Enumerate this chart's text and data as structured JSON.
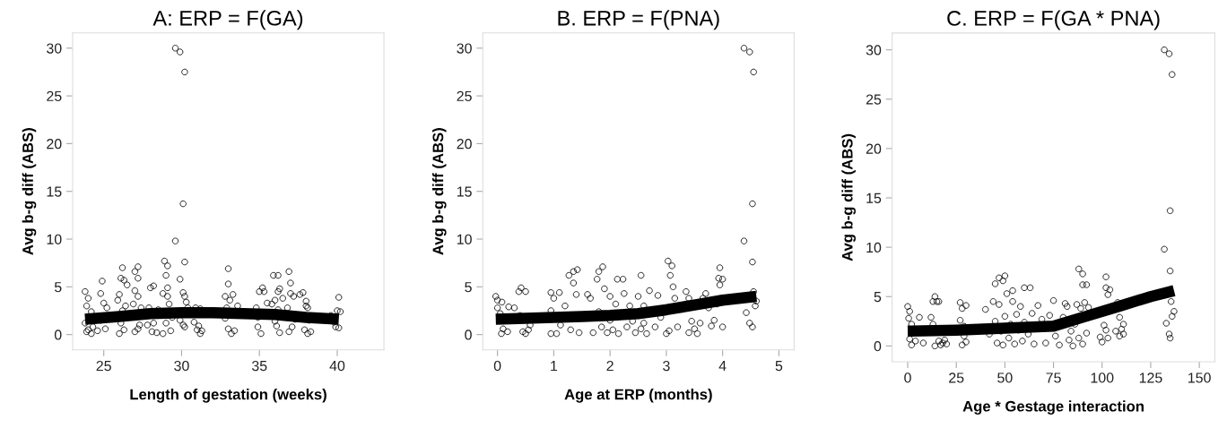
{
  "chart_data": [
    {
      "type": "scatter",
      "title": "A: ERP = F(GA)",
      "xlabel": "Length of gestation (weeks)",
      "ylabel": "Avg b-g diff (ABS)",
      "xlim": [
        23.0,
        43.0
      ],
      "ylim": [
        -1.6,
        31.6
      ],
      "xticks": [
        25,
        30,
        35,
        40
      ],
      "yticks": [
        0,
        5,
        10,
        15,
        20,
        25,
        30
      ],
      "grid": false,
      "series": [
        {
          "color": "#000000",
          "marker": "circle",
          "x": [
            29.6,
            29.9,
            30.2,
            30.1,
            29.6,
            30.2,
            28.9,
            29.1,
            29.0,
            29.9,
            24.9,
            26.2,
            27.2,
            27.0,
            26.1,
            27.2,
            26.3,
            33.0,
            33.0,
            36.9,
            35.9,
            36.2,
            37.0,
            40.1,
            23.8,
            24.0,
            23.9,
            24.2,
            23.8,
            24.0,
            24.2,
            23.9,
            24.3,
            24.8,
            25.0,
            25.2,
            24.8,
            25.1,
            24.6,
            26.0,
            25.9,
            26.2,
            26.1,
            26.3,
            26.0,
            26.5,
            26.4,
            27.0,
            27.2,
            26.9,
            27.3,
            27.0,
            27.2,
            27.4,
            28.0,
            28.2,
            27.9,
            28.2,
            28.1,
            28.4,
            27.8,
            28.5,
            28.8,
            29.1,
            29.2,
            29.0,
            29.3,
            28.8,
            29.4,
            29.1,
            30.1,
            30.3,
            29.9,
            30.1,
            30.2,
            30.4,
            30.2,
            30.8,
            31.0,
            31.2,
            31.1,
            30.9,
            31.3,
            31.2,
            32.8,
            33.1,
            33.3,
            32.9,
            32.8,
            33.0,
            33.2,
            33.4,
            33.6,
            34.8,
            35.0,
            35.2,
            35.3,
            34.9,
            35.1,
            34.9,
            35.5,
            35.8,
            36.0,
            36.2,
            36.3,
            36.0,
            36.1,
            36.3,
            36.5,
            36.2,
            36.8,
            37.0,
            37.2,
            36.9,
            37.1,
            37.3,
            37.6,
            37.8,
            38.0,
            38.1,
            38.2,
            37.9,
            38.1,
            38.3,
            38.0,
            39.6,
            39.8,
            40.0,
            40.1,
            40.2,
            39.9
          ],
          "values": [
            30,
            29.6,
            27.5,
            13.7,
            9.8,
            7.6,
            7.7,
            7.2,
            6.2,
            5.8,
            5.6,
            7.0,
            7.1,
            6.6,
            5.9,
            5.9,
            5.7,
            6.9,
            5.3,
            6.6,
            6.2,
            6.2,
            5.4,
            3.9,
            4.5,
            3.8,
            3.0,
            2.4,
            1.2,
            0.5,
            0.1,
            0.3,
            0.8,
            4.3,
            3.3,
            2.8,
            1.5,
            0.6,
            0.4,
            4.2,
            3.6,
            2.5,
            1.2,
            0.5,
            0.1,
            5.2,
            3.0,
            4.6,
            4.0,
            3.2,
            1.0,
            0.3,
            0.6,
            2.8,
            4.9,
            5.1,
            2.8,
            1.2,
            0.3,
            0.2,
            1.0,
            2.6,
            4.3,
            4.0,
            3.2,
            1.2,
            0.4,
            0.1,
            1.8,
            4.9,
            4.4,
            3.4,
            1.5,
            1.0,
            0.8,
            2.8,
            4.0,
            1.3,
            0.5,
            0.1,
            0.9,
            2.8,
            0.4,
            2.7,
            4.0,
            3.6,
            4.2,
            2.8,
            1.7,
            0.6,
            0.1,
            0.4,
            3.0,
            2.8,
            4.5,
            4.9,
            4.5,
            0.8,
            0.1,
            1.8,
            3.3,
            3.2,
            3.6,
            4.5,
            4.8,
            1.4,
            0.9,
            0.2,
            3.8,
            2.6,
            2.8,
            4.3,
            4.0,
            0.3,
            0.8,
            1.6,
            4.2,
            4.4,
            3.5,
            2.8,
            1.5,
            0.5,
            0.1,
            0.3,
            3.0,
            2.0,
            1.3,
            2.5,
            0.7,
            2.4,
            0.8
          ]
        },
        {
          "type": "line",
          "marker": "none",
          "color": "#000000",
          "x": [
            23.8,
            26,
            28,
            30,
            32,
            34,
            36,
            38,
            40.1
          ],
          "values": [
            1.6,
            1.9,
            2.2,
            2.3,
            2.3,
            2.2,
            2.1,
            1.8,
            1.6
          ]
        }
      ]
    },
    {
      "type": "scatter",
      "title": "B. ERP = F(PNA)",
      "xlabel": "Age at ERP (months)",
      "ylabel": "Avg b-g diff (ABS)",
      "xlim": [
        -0.26,
        5.27
      ],
      "ylim": [
        -1.6,
        31.6
      ],
      "xticks": [
        0,
        1,
        2,
        3,
        4,
        5
      ],
      "yticks": [
        0,
        5,
        10,
        15,
        20,
        25,
        30
      ],
      "grid": false,
      "series": [
        {
          "color": "#000000",
          "marker": "circle",
          "x": [
            4.38,
            4.48,
            4.55,
            4.53,
            4.38,
            4.53,
            3.03,
            3.1,
            3.07,
            3.12,
            3.95,
            3.93,
            4.0,
            3.95,
            4.55,
            4.6,
            4.58,
            4.42,
            4.48,
            4.53,
            1.42,
            1.35,
            1.27,
            1.87,
            1.8,
            2.55,
            2.13,
            2.23,
            1.77,
            -0.03,
            0.0,
            0.08,
            0.0,
            0.05,
            0.1,
            0.07,
            0.18,
            0.2,
            0.3,
            0.38,
            0.42,
            0.5,
            0.4,
            0.45,
            0.5,
            0.55,
            0.58,
            0.95,
            1.0,
            1.1,
            0.95,
            0.95,
            1.05,
            1.12,
            1.2,
            1.3,
            1.35,
            1.4,
            1.45,
            1.6,
            1.65,
            1.7,
            1.8,
            1.85,
            1.9,
            1.95,
            2.0,
            2.0,
            2.05,
            2.1,
            2.15,
            2.25,
            2.3,
            2.35,
            2.4,
            2.45,
            2.5,
            2.55,
            2.6,
            2.6,
            2.65,
            2.7,
            2.8,
            2.85,
            2.9,
            3.0,
            3.05,
            3.15,
            3.2,
            3.35,
            3.4,
            3.4,
            3.45,
            3.5,
            3.55,
            3.6,
            3.65,
            3.7,
            3.75,
            3.8,
            3.85,
            3.9,
            4.0
          ],
          "values": [
            30,
            29.6,
            27.5,
            13.7,
            9.8,
            7.6,
            7.7,
            7.2,
            6.2,
            5.0,
            7.0,
            5.9,
            5.8,
            5.2,
            4.5,
            3.5,
            3.0,
            2.3,
            1.2,
            0.8,
            6.8,
            6.6,
            6.2,
            7.1,
            6.6,
            6.2,
            5.8,
            5.8,
            5.8,
            4.0,
            3.6,
            3.4,
            2.8,
            2.2,
            0.6,
            0.1,
            0.3,
            2.9,
            2.8,
            4.5,
            4.9,
            4.5,
            2.0,
            0.3,
            0.1,
            0.5,
            1.0,
            4.4,
            3.8,
            4.4,
            2.5,
            0.1,
            0.1,
            1.0,
            3.0,
            0.5,
            5.4,
            4.2,
            0.2,
            4.2,
            3.8,
            0.2,
            2.4,
            0.8,
            4.8,
            0.2,
            4.0,
            1.5,
            0.5,
            3.2,
            0.1,
            4.3,
            0.8,
            3.0,
            1.4,
            0.2,
            4.0,
            0.6,
            3.0,
            1.2,
            0.1,
            4.6,
            0.8,
            4.1,
            1.8,
            0.1,
            0.4,
            3.8,
            0.8,
            4.5,
            3.8,
            0.2,
            1.4,
            0.6,
            0.1,
            1.2,
            3.8,
            4.3,
            2.8,
            0.9,
            1.5,
            3.2,
            0.8
          ]
        },
        {
          "type": "line",
          "marker": "none",
          "color": "#000000",
          "x": [
            -0.03,
            0.5,
            1,
            1.5,
            2,
            2.5,
            3,
            3.5,
            4,
            4.6
          ],
          "values": [
            1.6,
            1.7,
            1.8,
            1.9,
            2.0,
            2.2,
            2.6,
            3.1,
            3.6,
            4.0
          ]
        }
      ]
    },
    {
      "type": "scatter",
      "title": "C. ERP = F(GA * PNA)",
      "xlabel": "Age * Gestage interaction",
      "ylabel": "Avg b-g diff (ABS)",
      "xlim": [
        -8,
        158
      ],
      "ylim": [
        -1.6,
        31.7
      ],
      "xticks": [
        0,
        25,
        50,
        75,
        100,
        125,
        150
      ],
      "yticks": [
        0,
        5,
        10,
        15,
        20,
        25,
        30
      ],
      "grid": false,
      "series": [
        {
          "color": "#000000",
          "marker": "circle",
          "x": [
            132,
            134.5,
            136,
            135,
            132,
            135,
            135.5,
            137,
            136,
            133,
            134.5,
            135,
            88,
            90,
            90,
            92,
            102,
            102,
            104,
            103,
            47,
            50,
            49,
            45,
            54,
            60,
            63,
            0,
            1,
            0.5,
            2,
            1,
            2,
            4,
            6,
            8,
            12,
            13,
            14,
            15,
            16,
            13,
            14,
            16,
            17,
            18,
            19,
            20,
            27,
            28,
            30,
            27,
            29,
            28,
            30,
            29,
            40,
            42,
            44,
            45,
            46,
            47,
            48,
            49,
            50,
            51,
            52,
            53,
            54,
            55,
            56,
            57,
            58,
            59,
            60,
            62,
            64,
            65,
            67,
            69,
            71,
            73,
            75,
            76,
            78,
            80,
            81,
            82,
            83,
            84,
            85,
            86,
            87,
            88,
            89,
            90,
            91,
            92,
            93,
            99,
            100,
            101,
            102,
            103,
            107,
            108,
            109,
            109,
            110,
            111,
            111
          ],
          "values": [
            30,
            29.6,
            27.5,
            13.7,
            9.8,
            7.6,
            4.5,
            3.5,
            3.0,
            2.3,
            1.2,
            0.8,
            7.8,
            7.3,
            6.2,
            6.2,
            7.0,
            5.9,
            5.7,
            5.2,
            6.9,
            7.1,
            6.6,
            6.3,
            5.6,
            5.9,
            5.9,
            4.0,
            3.5,
            2.8,
            2.2,
            0.7,
            0.1,
            0.5,
            2.9,
            0.3,
            2.9,
            4.5,
            5.0,
            4.5,
            4.5,
            2.2,
            0.0,
            0.5,
            0.1,
            0.3,
            0.6,
            0.2,
            4.4,
            3.8,
            4.1,
            2.6,
            2.0,
            0.1,
            0.4,
            1.0,
            3.7,
            1.2,
            4.5,
            2.5,
            0.3,
            4.2,
            1.5,
            0.1,
            3.0,
            5.3,
            0.8,
            2.2,
            4.5,
            0.2,
            3.2,
            1.6,
            4.0,
            0.5,
            2.4,
            1.2,
            3.3,
            0.2,
            4.1,
            2.7,
            0.3,
            3.1,
            4.6,
            1.0,
            0.1,
            2.9,
            4.3,
            4.0,
            0.6,
            1.5,
            0.0,
            2.2,
            4.2,
            0.8,
            3.8,
            0.2,
            4.4,
            1.3,
            3.9,
            0.9,
            0.4,
            2.1,
            1.6,
            0.8,
            1.5,
            4.4,
            2.9,
            1.0,
            1.7,
            2.2,
            1.2
          ]
        },
        {
          "type": "line",
          "marker": "none",
          "color": "#000000",
          "x": [
            0,
            25,
            50,
            75,
            90,
            110,
            125,
            137
          ],
          "values": [
            1.5,
            1.6,
            1.8,
            2.0,
            2.9,
            4.1,
            5.0,
            5.6
          ]
        }
      ]
    }
  ]
}
